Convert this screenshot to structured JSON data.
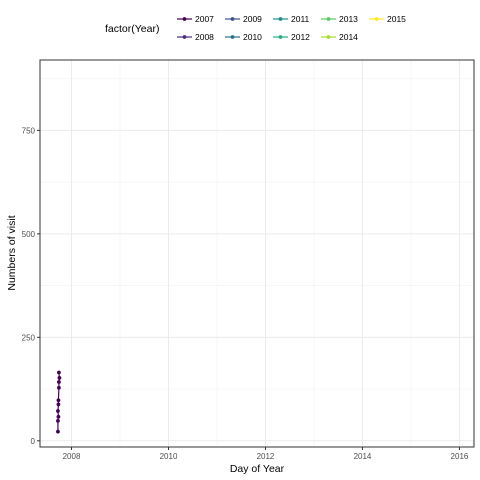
{
  "chart_data": {
    "type": "line",
    "xlabel": "Day of Year",
    "ylabel": "Numbers of visit",
    "xlim": [
      2007.35,
      2016.3
    ],
    "ylim": [
      -15,
      920
    ],
    "x_ticks": [
      2008,
      2010,
      2012,
      2014,
      2016
    ],
    "x_tick_labels": [
      "2008",
      "2010",
      "2012",
      "2014",
      "2016"
    ],
    "y_ticks": [
      0,
      250,
      500,
      750
    ],
    "y_tick_labels": [
      "0",
      "250",
      "500",
      "750"
    ],
    "grid": true,
    "legend": {
      "title": "factor(Year)",
      "position": "top",
      "entries": [
        "2007",
        "2008",
        "2009",
        "2010",
        "2011",
        "2012",
        "2013",
        "2014",
        "2015"
      ],
      "colors": [
        "#440154",
        "#472D7B",
        "#3B528B",
        "#2C728E",
        "#21908C",
        "#27AD81",
        "#5DC863",
        "#AADC32",
        "#FDE725"
      ]
    },
    "series": [
      {
        "name": "2007",
        "color": "#440154",
        "points": [
          {
            "x": 2007.72,
            "y": 22
          },
          {
            "x": 2007.72,
            "y": 48
          },
          {
            "x": 2007.73,
            "y": 58
          },
          {
            "x": 2007.72,
            "y": 72
          },
          {
            "x": 2007.73,
            "y": 88
          },
          {
            "x": 2007.73,
            "y": 98
          },
          {
            "x": 2007.74,
            "y": 128
          },
          {
            "x": 2007.74,
            "y": 142
          },
          {
            "x": 2007.75,
            "y": 152
          },
          {
            "x": 2007.74,
            "y": 165
          }
        ]
      }
    ]
  }
}
